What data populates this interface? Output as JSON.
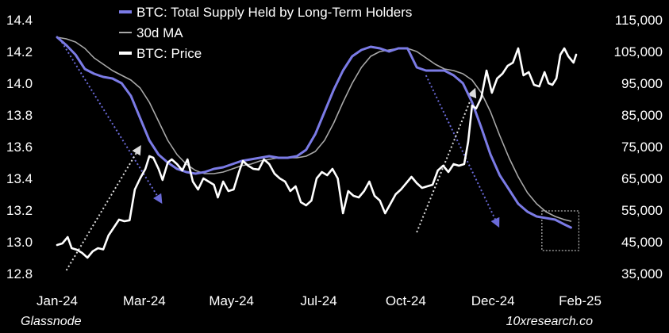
{
  "chart_data": {
    "type": "line",
    "title": "",
    "xlabel": "",
    "ylabel_left": "",
    "ylabel_right": "",
    "x_tick_labels": [
      "Jan-24",
      "Mar-24",
      "May-24",
      "Jul-24",
      "Oct-24",
      "Dec-24",
      "Feb-25"
    ],
    "x_range": [
      "2024-01-01",
      "2025-02-01"
    ],
    "y_left": {
      "range": [
        12.8,
        14.4
      ],
      "ticks": [
        "12.8",
        "13.0",
        "13.2",
        "13.4",
        "13.6",
        "13.8",
        "14.0",
        "14.2",
        "14.4"
      ]
    },
    "y_right": {
      "range": [
        35000,
        115000
      ],
      "ticks": [
        "35,000",
        "45,000",
        "55,000",
        "65,000",
        "75,000",
        "85,000",
        "95,000",
        "105,000",
        "115,000"
      ]
    },
    "legend": [
      "BTC: Total Supply Held by Long-Term Holders",
      "30d MA",
      "BTC: Price"
    ],
    "legend_position": "top-left",
    "colors": {
      "lth": "#7b7be6",
      "ma": "#a8a8a8",
      "price": "#ffffff",
      "arrow_blue": "#6a6ad8",
      "arrow_white": "#dddddd",
      "background": "#000000"
    },
    "series": [
      {
        "name": "BTC: Total Supply Held by Long-Term Holders",
        "axis": "left",
        "points": [
          [
            "2024-01-01",
            14.29
          ],
          [
            "2024-01-08",
            14.24
          ],
          [
            "2024-01-15",
            14.18
          ],
          [
            "2024-01-22",
            14.09
          ],
          [
            "2024-01-29",
            14.06
          ],
          [
            "2024-02-05",
            14.04
          ],
          [
            "2024-02-12",
            14.03
          ],
          [
            "2024-02-19",
            14.0
          ],
          [
            "2024-02-26",
            13.92
          ],
          [
            "2024-03-04",
            13.78
          ],
          [
            "2024-03-11",
            13.64
          ],
          [
            "2024-03-18",
            13.55
          ],
          [
            "2024-03-25",
            13.5
          ],
          [
            "2024-04-01",
            13.46
          ],
          [
            "2024-04-08",
            13.44
          ],
          [
            "2024-04-15",
            13.43
          ],
          [
            "2024-04-22",
            13.44
          ],
          [
            "2024-04-29",
            13.46
          ],
          [
            "2024-05-06",
            13.47
          ],
          [
            "2024-05-13",
            13.49
          ],
          [
            "2024-05-20",
            13.51
          ],
          [
            "2024-05-27",
            13.52
          ],
          [
            "2024-06-03",
            13.53
          ],
          [
            "2024-06-10",
            13.54
          ],
          [
            "2024-06-17",
            13.53
          ],
          [
            "2024-06-24",
            13.53
          ],
          [
            "2024-07-01",
            13.54
          ],
          [
            "2024-07-08",
            13.58
          ],
          [
            "2024-07-15",
            13.68
          ],
          [
            "2024-07-22",
            13.82
          ],
          [
            "2024-07-29",
            13.96
          ],
          [
            "2024-08-05",
            14.08
          ],
          [
            "2024-08-12",
            14.17
          ],
          [
            "2024-08-19",
            14.21
          ],
          [
            "2024-08-26",
            14.23
          ],
          [
            "2024-09-02",
            14.22
          ],
          [
            "2024-09-09",
            14.2
          ],
          [
            "2024-09-16",
            14.22
          ],
          [
            "2024-09-23",
            14.22
          ],
          [
            "2024-09-30",
            14.1
          ],
          [
            "2024-10-07",
            14.08
          ],
          [
            "2024-10-14",
            14.08
          ],
          [
            "2024-10-21",
            14.08
          ],
          [
            "2024-10-28",
            14.05
          ],
          [
            "2024-11-04",
            14.0
          ],
          [
            "2024-11-11",
            13.88
          ],
          [
            "2024-11-18",
            13.72
          ],
          [
            "2024-11-25",
            13.55
          ],
          [
            "2024-12-02",
            13.42
          ],
          [
            "2024-12-09",
            13.33
          ],
          [
            "2024-12-16",
            13.24
          ],
          [
            "2024-12-23",
            13.19
          ],
          [
            "2024-12-30",
            13.16
          ],
          [
            "2025-01-06",
            13.15
          ],
          [
            "2025-01-13",
            13.14
          ],
          [
            "2025-01-20",
            13.11
          ],
          [
            "2025-01-25",
            13.09
          ]
        ]
      },
      {
        "name": "30d MA",
        "axis": "left",
        "points": [
          [
            "2024-01-01",
            14.29
          ],
          [
            "2024-01-08",
            14.28
          ],
          [
            "2024-01-15",
            14.26
          ],
          [
            "2024-01-22",
            14.22
          ],
          [
            "2024-01-29",
            14.16
          ],
          [
            "2024-02-05",
            14.12
          ],
          [
            "2024-02-12",
            14.08
          ],
          [
            "2024-02-19",
            14.05
          ],
          [
            "2024-02-26",
            14.02
          ],
          [
            "2024-03-04",
            13.97
          ],
          [
            "2024-03-11",
            13.88
          ],
          [
            "2024-03-18",
            13.76
          ],
          [
            "2024-03-25",
            13.64
          ],
          [
            "2024-04-01",
            13.55
          ],
          [
            "2024-04-08",
            13.49
          ],
          [
            "2024-04-15",
            13.45
          ],
          [
            "2024-04-22",
            13.43
          ],
          [
            "2024-04-29",
            13.43
          ],
          [
            "2024-05-06",
            13.44
          ],
          [
            "2024-05-13",
            13.46
          ],
          [
            "2024-05-20",
            13.48
          ],
          [
            "2024-05-27",
            13.49
          ],
          [
            "2024-06-03",
            13.51
          ],
          [
            "2024-06-10",
            13.52
          ],
          [
            "2024-06-17",
            13.53
          ],
          [
            "2024-06-24",
            13.53
          ],
          [
            "2024-07-01",
            13.53
          ],
          [
            "2024-07-08",
            13.54
          ],
          [
            "2024-07-15",
            13.57
          ],
          [
            "2024-07-22",
            13.64
          ],
          [
            "2024-07-29",
            13.75
          ],
          [
            "2024-08-05",
            13.88
          ],
          [
            "2024-08-12",
            14.0
          ],
          [
            "2024-08-19",
            14.1
          ],
          [
            "2024-08-26",
            14.17
          ],
          [
            "2024-09-02",
            14.2
          ],
          [
            "2024-09-09",
            14.21
          ],
          [
            "2024-09-16",
            14.22
          ],
          [
            "2024-09-23",
            14.22
          ],
          [
            "2024-09-30",
            14.2
          ],
          [
            "2024-10-07",
            14.16
          ],
          [
            "2024-10-14",
            14.12
          ],
          [
            "2024-10-21",
            14.09
          ],
          [
            "2024-10-28",
            14.08
          ],
          [
            "2024-11-04",
            14.06
          ],
          [
            "2024-11-11",
            14.02
          ],
          [
            "2024-11-18",
            13.94
          ],
          [
            "2024-11-25",
            13.82
          ],
          [
            "2024-12-02",
            13.67
          ],
          [
            "2024-12-09",
            13.53
          ],
          [
            "2024-12-16",
            13.41
          ],
          [
            "2024-12-23",
            13.31
          ],
          [
            "2024-12-30",
            13.24
          ],
          [
            "2025-01-06",
            13.19
          ],
          [
            "2025-01-13",
            13.16
          ],
          [
            "2025-01-20",
            13.14
          ],
          [
            "2025-01-25",
            13.13
          ]
        ]
      },
      {
        "name": "BTC: Price",
        "axis": "right",
        "points": [
          [
            "2024-01-01",
            44000
          ],
          [
            "2024-01-05",
            44500
          ],
          [
            "2024-01-09",
            46500
          ],
          [
            "2024-01-12",
            43000
          ],
          [
            "2024-01-16",
            42500
          ],
          [
            "2024-01-20",
            41500
          ],
          [
            "2024-01-24",
            40000
          ],
          [
            "2024-01-28",
            42000
          ],
          [
            "2024-02-01",
            43000
          ],
          [
            "2024-02-05",
            42600
          ],
          [
            "2024-02-09",
            47000
          ],
          [
            "2024-02-13",
            49500
          ],
          [
            "2024-02-17",
            52000
          ],
          [
            "2024-02-21",
            51500
          ],
          [
            "2024-02-25",
            51800
          ],
          [
            "2024-02-29",
            61500
          ],
          [
            "2024-03-04",
            65000
          ],
          [
            "2024-03-08",
            68000
          ],
          [
            "2024-03-11",
            72000
          ],
          [
            "2024-03-14",
            71500
          ],
          [
            "2024-03-18",
            68000
          ],
          [
            "2024-03-21",
            64500
          ],
          [
            "2024-03-25",
            70000
          ],
          [
            "2024-03-28",
            71000
          ],
          [
            "2024-04-01",
            69500
          ],
          [
            "2024-04-05",
            67500
          ],
          [
            "2024-04-09",
            71000
          ],
          [
            "2024-04-13",
            64000
          ],
          [
            "2024-04-17",
            61500
          ],
          [
            "2024-04-21",
            65000
          ],
          [
            "2024-04-25",
            64000
          ],
          [
            "2024-04-29",
            63000
          ],
          [
            "2024-05-02",
            59000
          ],
          [
            "2024-05-06",
            64000
          ],
          [
            "2024-05-10",
            61000
          ],
          [
            "2024-05-14",
            61500
          ],
          [
            "2024-05-18",
            67000
          ],
          [
            "2024-05-21",
            70500
          ],
          [
            "2024-05-25",
            69000
          ],
          [
            "2024-05-29",
            68000
          ],
          [
            "2024-06-02",
            67800
          ],
          [
            "2024-06-06",
            71000
          ],
          [
            "2024-06-10",
            69500
          ],
          [
            "2024-06-14",
            66500
          ],
          [
            "2024-06-18",
            65000
          ],
          [
            "2024-06-22",
            64000
          ],
          [
            "2024-06-26",
            61000
          ],
          [
            "2024-06-30",
            62500
          ],
          [
            "2024-07-04",
            57500
          ],
          [
            "2024-07-08",
            56500
          ],
          [
            "2024-07-12",
            58000
          ],
          [
            "2024-07-16",
            65000
          ],
          [
            "2024-07-20",
            67000
          ],
          [
            "2024-07-24",
            66000
          ],
          [
            "2024-07-28",
            68000
          ],
          [
            "2024-08-01",
            65000
          ],
          [
            "2024-08-05",
            54000
          ],
          [
            "2024-08-09",
            61000
          ],
          [
            "2024-08-13",
            59500
          ],
          [
            "2024-08-17",
            59000
          ],
          [
            "2024-08-21",
            61000
          ],
          [
            "2024-08-25",
            64000
          ],
          [
            "2024-08-29",
            59500
          ],
          [
            "2024-09-02",
            58000
          ],
          [
            "2024-09-06",
            54000
          ],
          [
            "2024-09-10",
            57000
          ],
          [
            "2024-09-14",
            60000
          ],
          [
            "2024-09-18",
            61500
          ],
          [
            "2024-09-22",
            63500
          ],
          [
            "2024-09-26",
            65500
          ],
          [
            "2024-09-30",
            63500
          ],
          [
            "2024-10-04",
            62000
          ],
          [
            "2024-10-08",
            62500
          ],
          [
            "2024-10-12",
            63000
          ],
          [
            "2024-10-16",
            67500
          ],
          [
            "2024-10-20",
            69000
          ],
          [
            "2024-10-24",
            67000
          ],
          [
            "2024-10-28",
            69500
          ],
          [
            "2024-11-01",
            69000
          ],
          [
            "2024-11-05",
            69500
          ],
          [
            "2024-11-08",
            76500
          ],
          [
            "2024-11-11",
            88000
          ],
          [
            "2024-11-14",
            87000
          ],
          [
            "2024-11-18",
            90500
          ],
          [
            "2024-11-22",
            99000
          ],
          [
            "2024-11-26",
            92000
          ],
          [
            "2024-11-30",
            96500
          ],
          [
            "2024-12-04",
            98000
          ],
          [
            "2024-12-08",
            100500
          ],
          [
            "2024-12-12",
            101500
          ],
          [
            "2024-12-16",
            106000
          ],
          [
            "2024-12-20",
            97500
          ],
          [
            "2024-12-24",
            98500
          ],
          [
            "2024-12-28",
            94500
          ],
          [
            "2025-01-01",
            94000
          ],
          [
            "2025-01-05",
            98500
          ],
          [
            "2025-01-08",
            95000
          ],
          [
            "2025-01-11",
            94500
          ],
          [
            "2025-01-14",
            96500
          ],
          [
            "2025-01-17",
            104000
          ],
          [
            "2025-01-20",
            106000
          ],
          [
            "2025-01-23",
            103500
          ],
          [
            "2025-01-27",
            101500
          ],
          [
            "2025-01-29",
            104000
          ]
        ]
      }
    ],
    "annotations": [
      {
        "kind": "dotted-arrow",
        "color": "blue",
        "from": [
          "2024-01-03",
          14.28
        ],
        "to": [
          "2024-03-20",
          13.25
        ],
        "axis": "left"
      },
      {
        "kind": "dotted-arrow",
        "color": "blue",
        "from": [
          "2024-10-07",
          14.05
        ],
        "to": [
          "2024-12-01",
          13.1
        ],
        "axis": "left"
      },
      {
        "kind": "dotted-arrow",
        "color": "white",
        "from": [
          "2024-01-08",
          36000
        ],
        "to": [
          "2024-03-04",
          75000
        ],
        "axis": "right"
      },
      {
        "kind": "dotted-arrow",
        "color": "white",
        "from": [
          "2024-09-30",
          48000
        ],
        "to": [
          "2024-11-13",
          93000
        ],
        "axis": "right"
      },
      {
        "kind": "dotted-box",
        "color": "white",
        "x_from": "2025-01-03",
        "x_to": "2025-01-31",
        "y_from": 13.195,
        "y_to": 12.945,
        "axis": "left"
      }
    ]
  },
  "footer": {
    "source": "Glassnode",
    "brand": "10xresearch.co"
  }
}
